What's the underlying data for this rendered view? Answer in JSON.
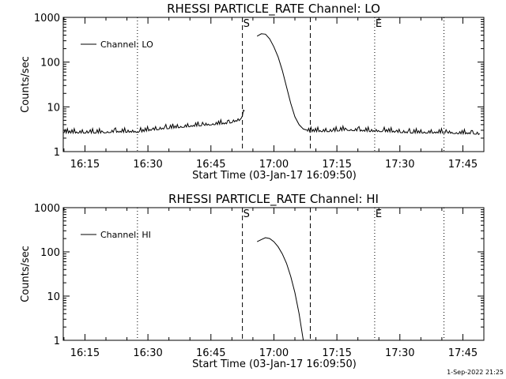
{
  "footer": {
    "stamp": "1-Sep-2022 21:25"
  },
  "chart_data": [
    {
      "type": "line",
      "title": "RHESSI PARTICLE_RATE Channel: LO",
      "xlabel": "Start Time (03-Jan-17 16:09:50)",
      "ylabel": "Counts/sec",
      "yscale": "log",
      "ylim": [
        1,
        1000
      ],
      "xlim": [
        "16:09:50",
        "17:50:00"
      ],
      "x_ticks": [
        "16:15",
        "16:30",
        "16:45",
        "17:00",
        "17:15",
        "17:30",
        "17:45"
      ],
      "y_ticks": [
        "1",
        "10",
        "100",
        "1000"
      ],
      "legend": {
        "position": "top-left",
        "entries": [
          "Channel: LO"
        ]
      },
      "markers": [
        {
          "label": "",
          "time": "16:27:30",
          "style": "dotted"
        },
        {
          "label": "S",
          "time": "16:52:30",
          "style": "dashed"
        },
        {
          "label": "",
          "time": "17:08:40",
          "style": "dashed"
        },
        {
          "label": "E",
          "time": "17:24:00",
          "style": "dotted"
        },
        {
          "label": "",
          "time": "17:40:30",
          "style": "dotted"
        }
      ],
      "series": [
        {
          "name": "Channel: LO",
          "segments": [
            {
              "x": [
                "16:10:00",
                "16:13:00",
                "16:16:00",
                "16:19:00",
                "16:22:00",
                "16:25:00",
                "16:28:00",
                "16:31:00",
                "16:34:00",
                "16:37:00",
                "16:40:00",
                "16:43:00",
                "16:46:00",
                "16:49:00",
                "16:52:00",
                "16:53:00"
              ],
              "y": [
                2.6,
                2.6,
                2.6,
                2.6,
                2.7,
                2.7,
                2.7,
                3.0,
                3.2,
                3.4,
                3.6,
                3.8,
                4.0,
                4.2,
                5.0,
                8.0
              ]
            },
            {
              "x": [
                "16:56:00",
                "16:57:00",
                "16:58:00",
                "16:59:00",
                "17:00:00",
                "17:01:00",
                "17:02:00",
                "17:03:00",
                "17:04:00",
                "17:05:00",
                "17:06:00",
                "17:07:00",
                "17:08:00"
              ],
              "y": [
                380,
                430,
                420,
                330,
                220,
                130,
                65,
                28,
                12,
                6,
                4,
                3.2,
                3.0
              ]
            },
            {
              "x": [
                "17:08:00",
                "17:11:00",
                "17:14:00",
                "17:17:00",
                "17:20:00",
                "17:23:00",
                "17:26:00",
                "17:29:00",
                "17:32:00",
                "17:35:00",
                "17:38:00",
                "17:41:00",
                "17:44:00",
                "17:47:00",
                "17:49:00"
              ],
              "y": [
                2.8,
                2.8,
                2.8,
                3.0,
                2.9,
                2.8,
                2.8,
                2.7,
                2.6,
                2.6,
                2.6,
                2.6,
                2.5,
                2.5,
                2.4
              ]
            }
          ]
        }
      ]
    },
    {
      "type": "line",
      "title": "RHESSI PARTICLE_RATE Channel: HI",
      "xlabel": "Start Time (03-Jan-17 16:09:50)",
      "ylabel": "Counts/sec",
      "yscale": "log",
      "ylim": [
        1,
        1000
      ],
      "xlim": [
        "16:09:50",
        "17:50:00"
      ],
      "x_ticks": [
        "16:15",
        "16:30",
        "16:45",
        "17:00",
        "17:15",
        "17:30",
        "17:45"
      ],
      "y_ticks": [
        "1",
        "10",
        "100",
        "1000"
      ],
      "legend": {
        "position": "top-left",
        "entries": [
          "Channel: HI"
        ]
      },
      "markers": [
        {
          "label": "",
          "time": "16:27:30",
          "style": "dotted"
        },
        {
          "label": "S",
          "time": "16:52:30",
          "style": "dashed"
        },
        {
          "label": "",
          "time": "17:08:40",
          "style": "dashed"
        },
        {
          "label": "E",
          "time": "17:24:00",
          "style": "dotted"
        },
        {
          "label": "",
          "time": "17:40:30",
          "style": "dotted"
        }
      ],
      "series": [
        {
          "name": "Channel: HI",
          "segments": [
            {
              "x": [
                "16:56:00",
                "16:57:00",
                "16:58:00",
                "16:59:00",
                "17:00:00",
                "17:01:00",
                "17:02:00",
                "17:03:00",
                "17:04:00",
                "17:05:00",
                "17:06:00",
                "17:07:00"
              ],
              "y": [
                170,
                190,
                210,
                200,
                170,
                130,
                90,
                55,
                28,
                12,
                4,
                1
              ]
            }
          ]
        }
      ]
    }
  ]
}
